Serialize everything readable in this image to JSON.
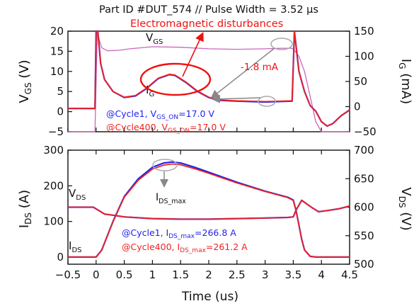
{
  "figure": {
    "title": "Part ID #DUT_574 // Pulse Width = 3.52 µs"
  },
  "chart_data": [
    {
      "type": "line",
      "panel": "top",
      "x_ticks": [
        -0.5,
        0,
        0.5,
        1,
        1.5,
        2,
        2.5,
        3,
        3.5,
        4,
        4.5
      ],
      "xlim": [
        -0.5,
        4.5
      ],
      "ylabel_left": "VGS (V)",
      "ylim_left": [
        -5,
        20
      ],
      "yticks_left": [
        -5,
        0,
        5,
        10,
        15,
        20
      ],
      "ylabel_right": "IG (mA)",
      "ylim_right": [
        -50,
        150
      ],
      "yticks_right": [
        -50,
        0,
        50,
        100,
        150
      ],
      "trace_labels": {
        "vgs": "VGS",
        "ig": "IG"
      },
      "annotations": {
        "disturbance": "Electromagnetic disturbances",
        "ig_level": "-1.8 mA",
        "legend_cycle1": "@Cycle1, VGS_ON=17.0 V",
        "legend_cycle400": "@Cycle400, VGS_ON=17.0 V"
      },
      "series": [
        {
          "name": "@Cycle1",
          "color": "#2222ee",
          "x": [
            -0.5,
            -0.02,
            0.0,
            0.03,
            0.08,
            0.15,
            0.3,
            0.5,
            0.7,
            0.9,
            1.1,
            1.3,
            1.4,
            1.6,
            1.8,
            2.0,
            2.2,
            2.5,
            3.0,
            3.48,
            3.52,
            3.6,
            3.7,
            3.8,
            3.9,
            4.0,
            4.1,
            4.2,
            4.35,
            4.5
          ],
          "vgs": [
            0.8,
            0.8,
            20,
            20,
            12,
            8,
            5,
            3.5,
            3.9,
            5.8,
            8.2,
            9.2,
            9.0,
            7.2,
            5.0,
            3.5,
            2.8,
            2.6,
            2.4,
            2.6,
            20,
            10,
            5,
            1.5,
            0.1,
            -2.5,
            -3.6,
            -3.0,
            -1.0,
            0.4
          ]
        },
        {
          "name": "@Cycle400",
          "color": "#ee2222",
          "x": [
            -0.5,
            -0.02,
            0.0,
            0.03,
            0.08,
            0.15,
            0.3,
            0.5,
            0.7,
            0.9,
            1.1,
            1.3,
            1.4,
            1.6,
            1.8,
            2.0,
            2.2,
            2.5,
            3.0,
            3.48,
            3.52,
            3.6,
            3.7,
            3.8,
            3.9,
            4.0,
            4.1,
            4.2,
            4.35,
            4.5
          ],
          "vgs": [
            0.8,
            0.8,
            20,
            20,
            12,
            8,
            5,
            3.6,
            4.0,
            5.9,
            8.3,
            9.3,
            9.1,
            7.3,
            5.1,
            3.6,
            2.9,
            2.7,
            2.5,
            2.7,
            20,
            10,
            5,
            1.5,
            0.1,
            -2.5,
            -3.6,
            -3.0,
            -1.0,
            0.4
          ]
        },
        {
          "name": "IG",
          "color": "#cc66bb",
          "x": [
            -0.5,
            -0.02,
            0.02,
            0.05,
            0.1,
            0.2,
            0.4,
            0.6,
            1.0,
            1.5,
            2.0,
            2.5,
            3.0,
            3.3,
            3.48,
            3.52,
            3.6,
            3.7,
            3.8,
            3.9,
            4.0,
            4.1,
            4.3,
            4.5
          ],
          "ig": [
            -50,
            -50,
            150,
            135,
            117,
            111,
            112,
            115,
            119,
            118,
            115,
            114,
            115,
            116,
            116,
            112,
            100,
            70,
            20,
            -30,
            -50,
            -50,
            -50,
            -50
          ]
        }
      ]
    },
    {
      "type": "line",
      "panel": "bottom",
      "xlabel": "Time (us)",
      "x_ticks": [
        -0.5,
        0,
        0.5,
        1,
        1.5,
        2,
        2.5,
        3,
        3.5,
        4,
        4.5
      ],
      "xlim": [
        -0.5,
        4.5
      ],
      "ylabel_left": "IDS (A)",
      "ylim_left": [
        -20,
        300
      ],
      "yticks_left": [
        0,
        100,
        200,
        300
      ],
      "ylabel_right": "VDS (V)",
      "ylim_right": [
        500,
        700
      ],
      "yticks_right": [
        500,
        550,
        600,
        650,
        700
      ],
      "trace_labels": {
        "vds": "VDS",
        "ids": "IDS",
        "ids_max": "IDS_max"
      },
      "annotations": {
        "legend_cycle1": "@Cycle1, IDS_max=266.8 A",
        "legend_cycle400": "@Cycle400, IDS_max=261.2 A"
      },
      "series": [
        {
          "name": "@Cycle1",
          "color": "#2222ee",
          "x": [
            -0.5,
            0.0,
            0.1,
            0.3,
            0.5,
            0.75,
            1.0,
            1.2,
            1.35,
            1.5,
            1.75,
            2.0,
            2.5,
            3.0,
            3.4,
            3.5,
            3.55,
            3.6,
            3.65,
            3.7,
            3.8,
            3.9,
            3.98,
            4.1,
            4.5
          ],
          "ids": [
            0,
            0,
            20,
            100,
            170,
            220,
            252,
            264,
            266.8,
            264,
            252,
            238,
            210,
            185,
            168,
            160,
            130,
            90,
            50,
            20,
            2,
            0,
            0,
            0,
            0
          ],
          "vds_x": [
            -0.5,
            -0.05,
            0.05,
            0.15,
            0.3,
            0.5,
            1.0,
            1.5,
            2.0,
            2.5,
            3.0,
            3.4,
            3.5,
            3.55,
            3.65,
            3.75,
            3.85,
            3.95,
            4.1,
            4.3,
            4.5
          ],
          "vds": [
            600,
            600,
            594,
            588,
            586,
            583,
            580,
            579,
            579,
            580,
            581,
            582,
            583,
            595,
            612,
            605,
            598,
            592,
            594,
            597,
            602
          ]
        },
        {
          "name": "@Cycle400",
          "color": "#ee2222",
          "x": [
            -0.5,
            0.0,
            0.1,
            0.3,
            0.5,
            0.75,
            1.0,
            1.2,
            1.35,
            1.5,
            1.75,
            2.0,
            2.5,
            3.0,
            3.4,
            3.5,
            3.55,
            3.6,
            3.65,
            3.7,
            3.8,
            3.9,
            3.98,
            4.1,
            4.5
          ],
          "ids": [
            0,
            0,
            20,
            99,
            168,
            216,
            247,
            258,
            261.2,
            259,
            248,
            235,
            208,
            184,
            167,
            159,
            129,
            89,
            49,
            20,
            2,
            0,
            0,
            0,
            0
          ],
          "vds_x": [
            -0.5,
            -0.05,
            0.05,
            0.15,
            0.3,
            0.5,
            1.0,
            1.5,
            2.0,
            2.5,
            3.0,
            3.4,
            3.5,
            3.55,
            3.65,
            3.75,
            3.85,
            3.95,
            4.1,
            4.3,
            4.5
          ],
          "vds": [
            600,
            600,
            594,
            588,
            586,
            583,
            580,
            579,
            579,
            580,
            581,
            582,
            583,
            595,
            612,
            605,
            598,
            592,
            594,
            597,
            602
          ]
        }
      ]
    }
  ]
}
